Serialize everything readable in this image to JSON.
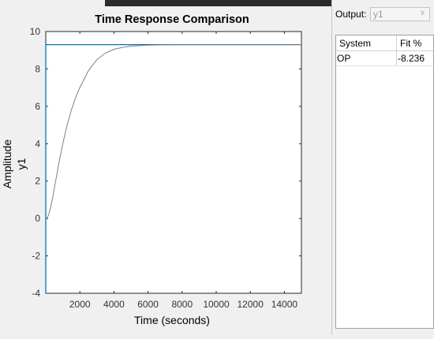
{
  "plot": {
    "title": "Time Response Comparison",
    "ylabel": "Amplitude",
    "ylabel_channel": "y1",
    "xlabel": "Time (seconds)"
  },
  "output": {
    "label": "Output:",
    "selected": "y1"
  },
  "fit_table": {
    "headers": [
      "System",
      "Fit %"
    ],
    "rows": [
      {
        "system": "OP",
        "fit": "-8.236"
      }
    ]
  },
  "colors": {
    "measured": "#0072bd",
    "model": "#808080",
    "axes": "#262626"
  },
  "chart_data": {
    "type": "line",
    "title": "Time Response Comparison",
    "xlabel": "Time (seconds)",
    "ylabel": "Amplitude",
    "xlim": [
      0,
      15000
    ],
    "ylim": [
      -4,
      10
    ],
    "xticks": [
      2000,
      4000,
      6000,
      8000,
      10000,
      12000,
      14000
    ],
    "yticks": [
      -4,
      -2,
      0,
      2,
      4,
      6,
      8,
      10
    ],
    "grid": false,
    "series": [
      {
        "color": "#0072bd",
        "x": [
          0,
          0,
          0,
          15000
        ],
        "y": [
          -4,
          0,
          9.3,
          9.3
        ]
      },
      {
        "color": "#808080",
        "x": [
          0,
          100,
          200,
          300,
          400,
          500,
          600,
          800,
          1000,
          1200,
          1500,
          1800,
          2000,
          2500,
          3000,
          3500,
          4000,
          4500,
          5000,
          6000,
          7000,
          8000,
          10000,
          12000,
          15000
        ],
        "y": [
          0,
          0.05,
          0.3,
          0.65,
          1.1,
          1.6,
          2.1,
          3.1,
          4.0,
          4.8,
          5.8,
          6.6,
          7.0,
          7.9,
          8.5,
          8.85,
          9.05,
          9.15,
          9.22,
          9.27,
          9.29,
          9.3,
          9.3,
          9.3,
          9.3
        ]
      }
    ]
  }
}
